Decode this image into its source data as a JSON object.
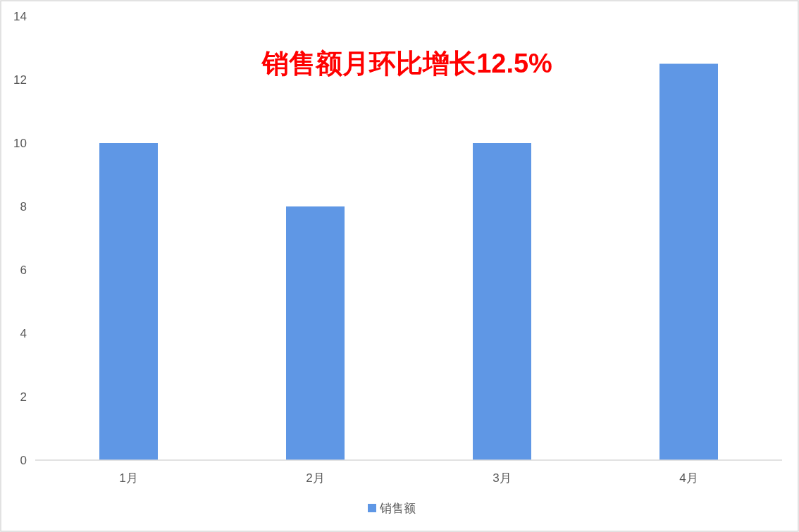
{
  "chart_data": {
    "type": "bar",
    "title": "销售额月环比增长12.5%",
    "categories": [
      "1月",
      "2月",
      "3月",
      "4月"
    ],
    "series": [
      {
        "name": "销售额",
        "color": "#5f97e5",
        "values": [
          10,
          8,
          10,
          12.5
        ]
      }
    ],
    "ylim": [
      0,
      14
    ],
    "yticks": [
      0,
      2,
      4,
      6,
      8,
      10,
      12,
      14
    ],
    "grid": false,
    "legend": "bottom"
  }
}
